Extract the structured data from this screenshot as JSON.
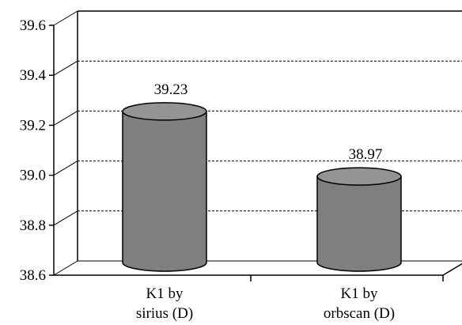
{
  "chart_data": {
    "type": "bar",
    "style": "3d-cylinder",
    "categories": [
      [
        "K1 by",
        "sirius (D)"
      ],
      [
        "K1 by",
        "orbscan (D)"
      ]
    ],
    "values": [
      39.23,
      38.97
    ],
    "data_labels": [
      "39.23",
      "38.97"
    ],
    "ylim": [
      38.6,
      39.6
    ],
    "yticks": [
      "38.6",
      "38.8",
      "39.0",
      "39.2",
      "39.4",
      "39.6"
    ],
    "ytick_values": [
      38.6,
      38.8,
      39.0,
      39.2,
      39.4,
      39.6
    ],
    "grid": "dashed-horizontal",
    "legend": "none",
    "colors": {
      "bar_body": "#7f7f7f",
      "bar_top": "#949494",
      "bar_stroke": "#000000",
      "grid": "#000000",
      "axis": "#000000"
    }
  }
}
